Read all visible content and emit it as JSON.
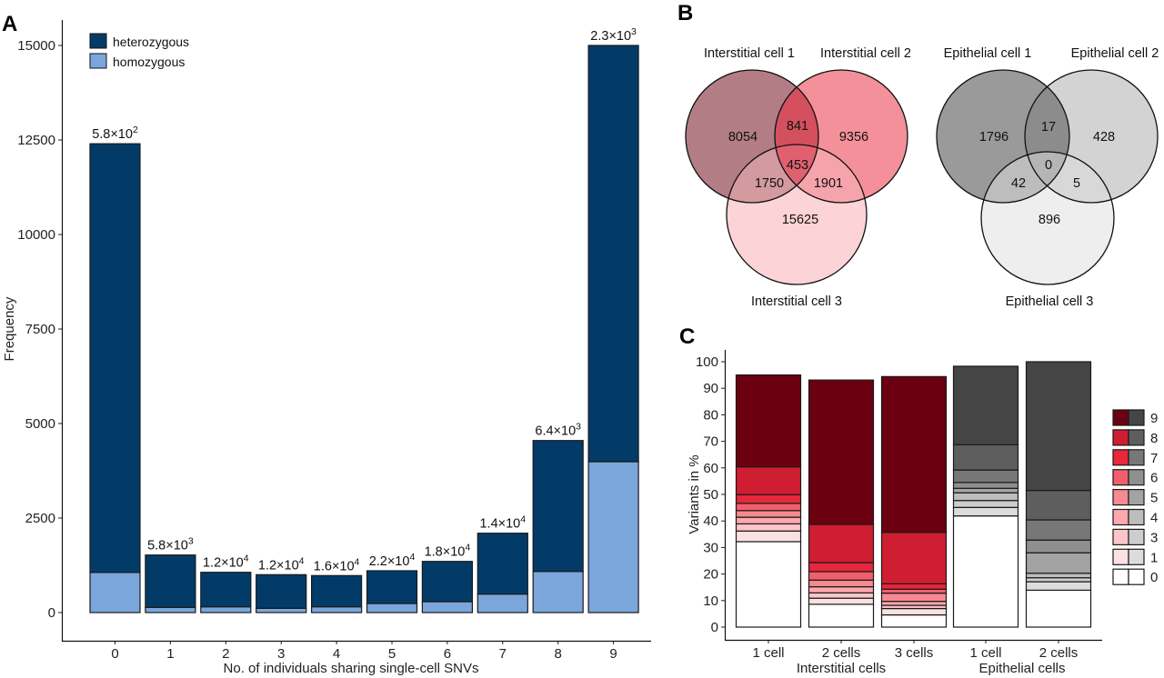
{
  "panels": {
    "A": {
      "letter": "A"
    },
    "B": {
      "letter": "B"
    },
    "C": {
      "letter": "C"
    }
  },
  "chart_data": [
    {
      "id": "A",
      "type": "bar",
      "stacked": true,
      "title": "",
      "xlabel": "No. of individuals sharing single-cell SNVs",
      "ylabel": "Frequency",
      "ylim": [
        0,
        15500
      ],
      "yticks": [
        0,
        2500,
        5000,
        7500,
        10000,
        12500,
        15000
      ],
      "categories": [
        "0",
        "1",
        "2",
        "3",
        "4",
        "5",
        "6",
        "7",
        "8",
        "9"
      ],
      "series": [
        {
          "name": "homozygous",
          "color": "#7ba6dc",
          "values": [
            1060,
            137,
            152,
            112,
            152,
            240,
            288,
            489,
            1087,
            3990
          ]
        },
        {
          "name": "heterozygous",
          "color": "#033b68",
          "values": [
            11340,
            1385,
            913,
            890,
            826,
            866,
            1065,
            1610,
            3463,
            11010
          ]
        }
      ],
      "totals": [
        12400,
        1522,
        1065,
        1002,
        978,
        1106,
        1353,
        2099,
        4550,
        15000
      ],
      "bar_labels": [
        {
          "mantissa": "5.8",
          "exp": "2"
        },
        {
          "mantissa": "5.8",
          "exp": "3"
        },
        {
          "mantissa": "1.2",
          "exp": "4"
        },
        {
          "mantissa": "1.2",
          "exp": "4"
        },
        {
          "mantissa": "1.6",
          "exp": "4"
        },
        {
          "mantissa": "2.2",
          "exp": "4"
        },
        {
          "mantissa": "1.8",
          "exp": "4"
        },
        {
          "mantissa": "1.4",
          "exp": "4"
        },
        {
          "mantissa": "6.4",
          "exp": "3"
        },
        {
          "mantissa": "2.3",
          "exp": "3"
        }
      ],
      "legend": {
        "position": "top-left",
        "entries": [
          "heterozygous",
          "homozygous"
        ]
      },
      "grid": false
    },
    {
      "id": "B-interstitial",
      "type": "venn",
      "sets": [
        "Interstitial cell 1",
        "Interstitial cell 2",
        "Interstitial cell 3"
      ],
      "colors": [
        "#b27d84",
        "#f4909a",
        "#fcd3d6"
      ],
      "regions": {
        "only1": 8054,
        "only2": 9356,
        "only3": 15625,
        "1and2": 841,
        "1and3": 1750,
        "2and3": 1901,
        "all": 453
      }
    },
    {
      "id": "B-epithelial",
      "type": "venn",
      "sets": [
        "Epithelial cell 1",
        "Epithelial cell 2",
        "Epithelial cell 3"
      ],
      "colors": [
        "#9a9a9a",
        "#d3d3d3",
        "#eeeeee"
      ],
      "regions": {
        "only1": 1796,
        "only2": 428,
        "only3": 896,
        "1and2": 17,
        "1and3": 42,
        "2and3": 5,
        "all": 0
      }
    },
    {
      "id": "C",
      "type": "bar",
      "stacked": true,
      "percent": true,
      "xlabel": "",
      "ylabel": "Variants in %",
      "ylim": [
        0,
        100
      ],
      "yticks": [
        0,
        10,
        20,
        30,
        40,
        50,
        60,
        70,
        80,
        90,
        100
      ],
      "categories": [
        "1 cell",
        "2 cells",
        "3 cells",
        "1 cell",
        "2 cells"
      ],
      "groups": [
        {
          "label": "Interstitial cells",
          "members": [
            0,
            1,
            2
          ]
        },
        {
          "label": "Epithelial cells",
          "members": [
            3,
            4
          ]
        }
      ],
      "stack_order": [
        "0",
        "1",
        "3",
        "4",
        "5",
        "6",
        "7",
        "8",
        "9"
      ],
      "series": [
        {
          "name": "0",
          "values": [
            32.2,
            8.6,
            4.6,
            41.9,
            13.9
          ]
        },
        {
          "name": "1",
          "values": [
            4.0,
            2.3,
            2.4,
            3.2,
            3.2
          ]
        },
        {
          "name": "3",
          "values": [
            2.7,
            2.0,
            1.2,
            2.6,
            1.5
          ]
        },
        {
          "name": "4",
          "values": [
            2.5,
            2.3,
            1.5,
            2.9,
            1.7
          ]
        },
        {
          "name": "5",
          "values": [
            2.5,
            2.5,
            3.1,
            1.7,
            7.7
          ]
        },
        {
          "name": "6",
          "values": [
            2.7,
            3.2,
            1.5,
            2.2,
            4.8
          ]
        },
        {
          "name": "7",
          "values": [
            3.3,
            3.4,
            2.0,
            4.7,
            7.6
          ]
        },
        {
          "name": "8",
          "values": [
            10.5,
            14.4,
            19.4,
            9.5,
            11.1
          ]
        },
        {
          "name": "9",
          "values": [
            34.6,
            54.4,
            58.7,
            29.6,
            48.5
          ]
        }
      ],
      "palettes": {
        "interstitial": {
          "0": "#ffffff",
          "1": "#fde0e3",
          "3": "#fcc5ca",
          "4": "#fba8ae",
          "5": "#f88990",
          "6": "#f25f6c",
          "7": "#e6273c",
          "8": "#cf1e31",
          "9": "#6b0011"
        },
        "epithelial": {
          "0": "#ffffff",
          "1": "#dcdcdc",
          "3": "#cdcdcd",
          "4": "#bdbdbd",
          "5": "#a3a3a3",
          "6": "#8f8f8f",
          "7": "#777777",
          "8": "#5e5e5e",
          "9": "#454545"
        }
      },
      "legend": {
        "position": "right",
        "entries": [
          "9",
          "8",
          "7",
          "6",
          "5",
          "4",
          "3",
          "1",
          "0"
        ]
      },
      "grid": false
    }
  ]
}
